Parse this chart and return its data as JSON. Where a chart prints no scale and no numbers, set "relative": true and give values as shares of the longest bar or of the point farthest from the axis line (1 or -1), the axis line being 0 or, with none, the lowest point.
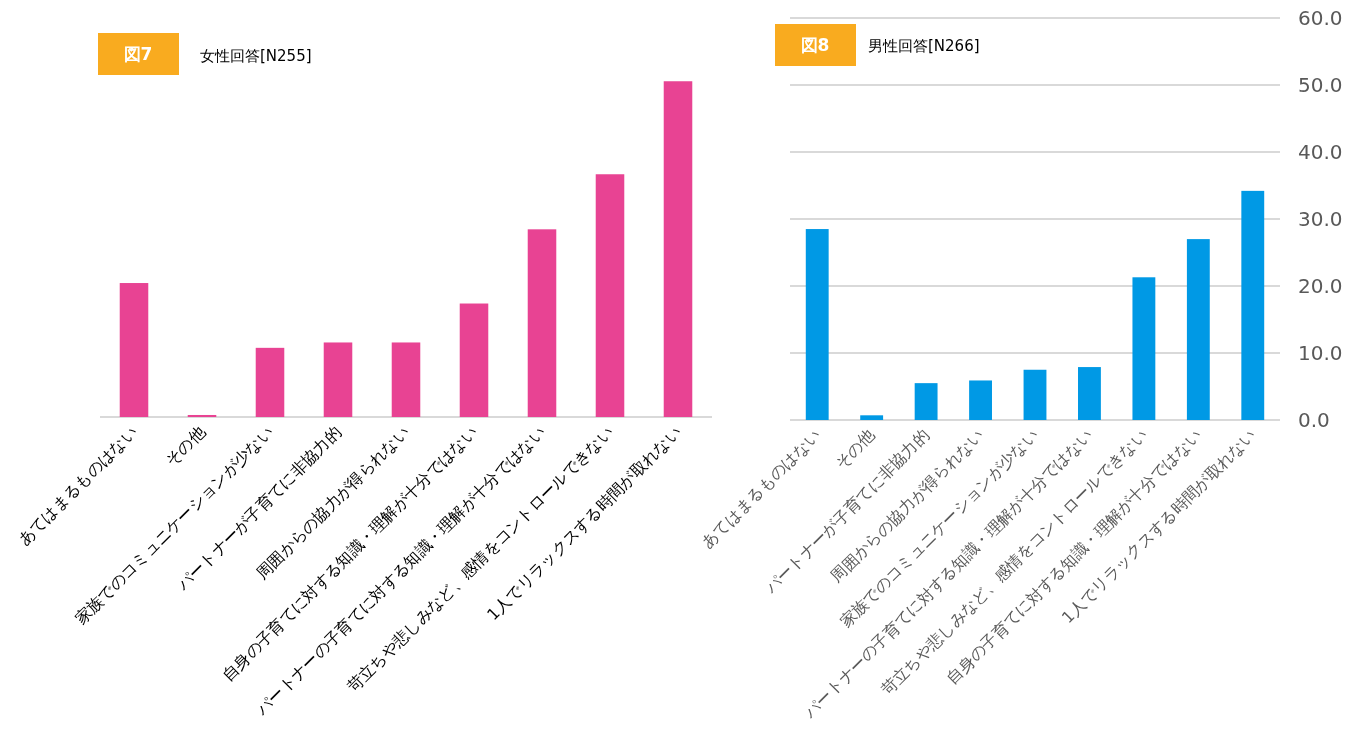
{
  "chart_data": [
    {
      "type": "bar",
      "title": "女性回答[N255]",
      "annotations": [
        "図7"
      ],
      "relative": true,
      "categories": [
        "あてはまるものはない",
        "その他",
        "家族でのコミュニケーションが少ない",
        "パートナーが子育てに非協力的",
        "周囲からの協力が得られない",
        "自身の子育てに対する知識・理解が十分ではない",
        "パートナーの子育てに対する知識・理解が十分ではない",
        "苛立ちや悲しみなど、感情をコントロールできない",
        "1人でリラックスする時間が取れない"
      ],
      "values": [
        0.399,
        0.006,
        0.206,
        0.222,
        0.222,
        0.338,
        0.559,
        0.723,
        1
      ],
      "color": "#e84393"
    },
    {
      "type": "bar",
      "title": "男性回答[N266]",
      "annotations": [
        "図8"
      ],
      "categories": [
        "あてはまるものはない",
        "その他",
        "パートナーが子育てに非協力的",
        "周囲からの協力が得られない",
        "家族でのコミュニケーションが少ない",
        "パートナーの子育てに対する知識・理解が十分ではない",
        "苛立ちや悲しみなど、感情をコントロールできない",
        "自身の子育てに対する知識・理解が十分ではない",
        "1人でリラックスする時間が取れない"
      ],
      "values": [
        28.5,
        0.7,
        5.5,
        5.9,
        7.5,
        7.9,
        21.3,
        27.0,
        34.2
      ],
      "color": "#0099e5",
      "ylim": [
        0,
        60
      ],
      "yticks": [
        {
          "value": 0,
          "label": "0.0"
        },
        {
          "value": 10,
          "label": "10.0"
        },
        {
          "value": 20,
          "label": "20.0"
        },
        {
          "value": 30,
          "label": "30.0"
        },
        {
          "value": 40,
          "label": "40.0"
        },
        {
          "value": 50,
          "label": "50.0"
        },
        {
          "value": 60,
          "label": "60.0"
        }
      ],
      "grid": "y"
    }
  ]
}
